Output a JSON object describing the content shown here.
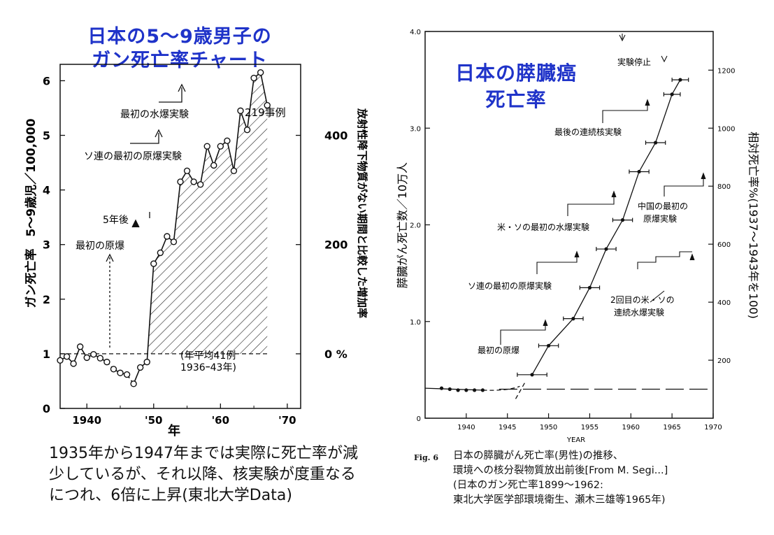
{
  "titles": {
    "left": [
      "日本の5～9歳男子の",
      "ガン死亡率チャート"
    ],
    "right": [
      "日本の膵臓癌",
      "死亡率"
    ]
  },
  "colors": {
    "title": "#1f33c9",
    "ink": "#111111"
  },
  "chart_data": [
    {
      "type": "line",
      "xlabel": "年",
      "ylabel": "ガン死亡率　5～9歳児／100,000",
      "y2label": "放射性降下物質がない期間と比較した増加率",
      "xlim": [
        1936,
        1972
      ],
      "ylim": [
        0,
        6.3
      ],
      "xticks": [
        1940,
        1950,
        1960,
        1970
      ],
      "xtick_labels": [
        "1940",
        "'50",
        "'60",
        "'70"
      ],
      "yticks": [
        0,
        1,
        2,
        3,
        4,
        5,
        6
      ],
      "y2ticks": [
        {
          "value": 1,
          "label": "0 %"
        },
        {
          "value": 3,
          "label": "200"
        },
        {
          "value": 5,
          "label": "400"
        }
      ],
      "baseline": 1,
      "series": [
        {
          "x": [
            1936,
            1937,
            1938,
            1939,
            1940,
            1941,
            1942,
            1943,
            1944,
            1945,
            1946,
            1947,
            1948,
            1949,
            1950,
            1951,
            1952,
            1953,
            1954,
            1955,
            1956,
            1957,
            1958,
            1959,
            1960,
            1961,
            1962,
            1963,
            1964,
            1965,
            1966,
            1967
          ],
          "y": [
            0.88,
            0.95,
            0.82,
            1.13,
            0.93,
            0.99,
            0.92,
            0.85,
            0.72,
            0.65,
            0.62,
            0.45,
            0.75,
            0.85,
            2.65,
            2.85,
            3.15,
            3.05,
            4.15,
            4.35,
            4.15,
            4.1,
            4.8,
            4.45,
            4.8,
            4.9,
            4.35,
            5.45,
            5.1,
            6.05,
            6.15,
            5.55
          ]
        }
      ],
      "annotations": [
        {
          "text": "最初の原爆",
          "x": 1945
        },
        {
          "text": "5年後",
          "x": 1950
        },
        {
          "text": "ソ連の最初の原爆実験",
          "x": 1949
        },
        {
          "text": "最初の水爆実験",
          "x": 1954
        },
        {
          "text": "219事例",
          "x": 1967
        },
        {
          "text": "(年平均41例",
          "x": 1955
        },
        {
          "text": "1936ｰ43年)",
          "x": 1955
        }
      ]
    },
    {
      "type": "line",
      "xlabel": "YEAR",
      "ylabel": "膵臓がん死亡数／10万人",
      "y2label": "相対死亡率%(1937～1943年を100)",
      "xlim": [
        1935,
        1970
      ],
      "ylim": [
        0,
        4.0
      ],
      "xticks": [
        1940,
        1945,
        1950,
        1955,
        1960,
        1965,
        1970
      ],
      "yticks": [
        0,
        1.0,
        2.0,
        3.0,
        4.0
      ],
      "ytick_labels": [
        "0",
        "1.0",
        "2.0",
        "3.0",
        "4.0"
      ],
      "y2ticks": [
        200,
        400,
        600,
        800,
        1000,
        1200
      ],
      "baseline": 0.3,
      "series": [
        {
          "x": [
            1937,
            1938,
            1939,
            1940,
            1941,
            1942,
            1948,
            1950,
            1953,
            1955,
            1957,
            1959,
            1961,
            1963,
            1965,
            1966
          ],
          "y": [
            0.31,
            0.3,
            0.29,
            0.29,
            0.29,
            0.29,
            0.45,
            0.75,
            1.03,
            1.35,
            1.75,
            2.05,
            2.55,
            2.85,
            3.35,
            3.5
          ],
          "xerr": [
            0,
            0,
            0,
            0,
            0,
            0,
            1.8,
            1.2,
            1.2,
            1.2,
            1.2,
            1.2,
            1.2,
            1.2,
            1.0,
            1.0
          ]
        }
      ],
      "annotations": [
        {
          "text": "実験停止",
          "x": 1963
        },
        {
          "text": "最後の連続核実験",
          "x": 1961
        },
        {
          "text": "米・ソの最初の水爆実験",
          "x": 1955
        },
        {
          "text": "中国の最初の",
          "x": 1964
        },
        {
          "text": "原爆実験",
          "x": 1964
        },
        {
          "text": "ソ連の最初の原爆実験",
          "x": 1949
        },
        {
          "text": "2回目の米・ソの",
          "x": 1962
        },
        {
          "text": "連続水爆実験",
          "x": 1962
        },
        {
          "text": "最初の原爆",
          "x": 1945
        }
      ]
    }
  ],
  "captions": {
    "left": [
      "1935年から1947年までは実際に死亡率が減",
      "少しているが、それ以降、核実験が度重なる",
      "につれ、6倍に上昇(東北大学Data)"
    ],
    "right_fig": "Fig. 6",
    "right": [
      "日本の膵臓がん死亡率(男性)の推移、",
      "環境への核分裂物質放出前後[From M. Segi...]",
      "(日本のガン死亡率1899～1962:",
      "東北大学医学部環境衛生、瀬木三雄等1965年)"
    ]
  }
}
